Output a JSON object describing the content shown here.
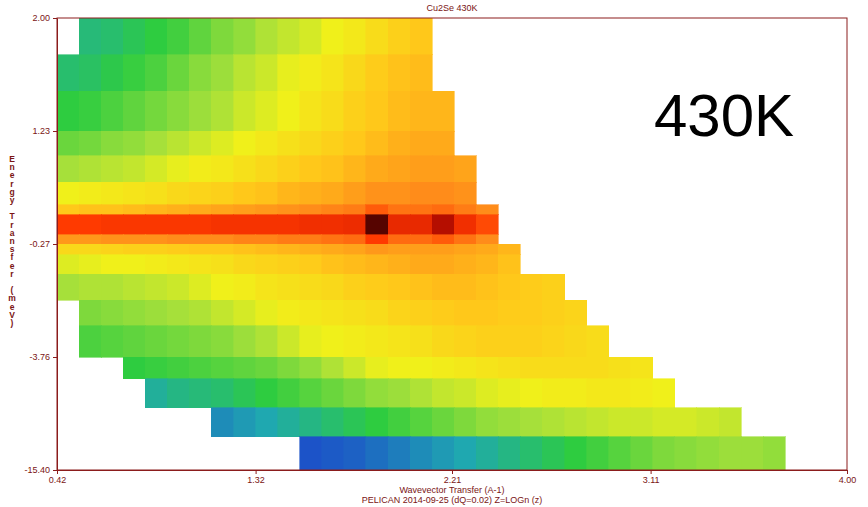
{
  "chart_data": {
    "type": "heatmap",
    "title": "Cu2Se 430K",
    "xlabel": "Wavevector Transfer (A-1)",
    "ylabel": "Energy Transfer (meV)",
    "annotations": [
      "PELICAN 2014-09-25 (dQ=0.02) Z=LOGn (z)",
      "430K"
    ],
    "xlim": [
      0.42,
      4.0
    ],
    "xticks": [
      0.42,
      1.32,
      2.21,
      3.11,
      {
        "value": 4.0,
        "label": "4.00"
      }
    ],
    "ylim": [
      -15.4,
      2.0
    ],
    "yticks": [
      {
        "value": 2.0,
        "label": "2.00"
      },
      1.23,
      -0.27,
      -3.76,
      {
        "value": -15.4,
        "label": "-15.40"
      }
    ],
    "zlim": [
      0,
      10
    ],
    "x_bins": [
      0.42,
      0.52,
      0.62,
      0.72,
      0.82,
      0.92,
      1.02,
      1.12,
      1.22,
      1.32,
      1.42,
      1.52,
      1.62,
      1.72,
      1.82,
      1.92,
      2.02,
      2.12,
      2.22,
      2.32,
      2.42,
      2.52,
      2.62,
      2.72,
      2.82,
      2.92,
      3.02,
      3.12,
      3.22,
      3.32,
      3.42,
      3.52,
      3.62,
      3.72,
      3.82,
      3.92,
      4.0
    ],
    "y_bins": [
      2.0,
      1.75,
      1.5,
      1.23,
      0.9,
      0.55,
      0.25,
      0.12,
      -0.15,
      -0.27,
      -0.6,
      -1.2,
      -2.0,
      -2.8,
      -3.76,
      -6.0,
      -9.0,
      -12.0,
      -15.4
    ],
    "cells": [
      [
        null,
        2.5,
        2.6,
        2.8,
        3.0,
        3.2,
        3.5,
        3.8,
        4.0,
        4.3,
        4.5,
        4.7,
        5.0,
        5.2,
        5.5,
        5.8,
        6.0,
        null,
        null,
        null,
        null,
        null,
        null,
        null,
        null,
        null,
        null,
        null,
        null,
        null,
        null,
        null,
        null,
        null,
        null,
        null
      ],
      [
        2.6,
        2.7,
        2.9,
        3.1,
        3.3,
        3.6,
        3.9,
        4.1,
        4.4,
        4.6,
        4.9,
        5.1,
        5.3,
        5.6,
        5.9,
        6.1,
        6.2,
        null,
        null,
        null,
        null,
        null,
        null,
        null,
        null,
        null,
        null,
        null,
        null,
        null,
        null,
        null,
        null,
        null,
        null,
        null
      ],
      [
        3.0,
        3.1,
        3.3,
        3.5,
        3.7,
        3.9,
        4.1,
        4.3,
        4.6,
        4.8,
        5.0,
        5.3,
        5.5,
        5.8,
        6.0,
        6.2,
        6.3,
        6.3,
        null,
        null,
        null,
        null,
        null,
        null,
        null,
        null,
        null,
        null,
        null,
        null,
        null,
        null,
        null,
        null,
        null,
        null
      ],
      [
        3.6,
        3.7,
        3.9,
        4.0,
        4.2,
        4.4,
        4.6,
        4.8,
        5.0,
        5.2,
        5.4,
        5.6,
        5.8,
        6.0,
        6.2,
        6.4,
        6.5,
        6.5,
        null,
        null,
        null,
        null,
        null,
        null,
        null,
        null,
        null,
        null,
        null,
        null,
        null,
        null,
        null,
        null,
        null,
        null
      ],
      [
        4.2,
        4.3,
        4.4,
        4.5,
        4.7,
        4.9,
        5.1,
        5.2,
        5.4,
        5.6,
        5.8,
        6.0,
        6.1,
        6.3,
        6.5,
        6.6,
        6.7,
        6.7,
        6.6,
        null,
        null,
        null,
        null,
        null,
        null,
        null,
        null,
        null,
        null,
        null,
        null,
        null,
        null,
        null,
        null,
        null
      ],
      [
        5.0,
        5.1,
        5.2,
        5.3,
        5.4,
        5.6,
        5.7,
        5.8,
        6.0,
        6.1,
        6.3,
        6.4,
        6.5,
        6.7,
        6.9,
        6.9,
        7.0,
        7.0,
        6.9,
        null,
        null,
        null,
        null,
        null,
        null,
        null,
        null,
        null,
        null,
        null,
        null,
        null,
        null,
        null,
        null,
        null
      ],
      [
        6.0,
        6.1,
        6.1,
        6.2,
        6.3,
        6.4,
        6.5,
        6.6,
        6.7,
        6.8,
        6.9,
        7.0,
        7.1,
        7.2,
        7.6,
        7.3,
        7.3,
        7.4,
        7.2,
        7.0,
        null,
        null,
        null,
        null,
        null,
        null,
        null,
        null,
        null,
        null,
        null,
        null,
        null,
        null,
        null,
        null
      ],
      [
        8.0,
        8.0,
        8.1,
        8.1,
        8.1,
        8.1,
        8.1,
        8.2,
        8.2,
        8.2,
        8.2,
        8.3,
        8.3,
        8.4,
        9.8,
        8.5,
        8.5,
        9.3,
        8.3,
        7.8,
        null,
        null,
        null,
        null,
        null,
        null,
        null,
        null,
        null,
        null,
        null,
        null,
        null,
        null,
        null,
        null
      ],
      [
        6.8,
        6.8,
        6.9,
        6.9,
        6.9,
        7.0,
        7.0,
        7.0,
        7.1,
        7.1,
        7.2,
        7.2,
        7.3,
        7.4,
        8.0,
        7.4,
        7.4,
        7.6,
        7.3,
        7.0,
        null,
        null,
        null,
        null,
        null,
        null,
        null,
        null,
        null,
        null,
        null,
        null,
        null,
        null,
        null,
        null
      ],
      [
        5.6,
        5.6,
        5.7,
        5.8,
        5.8,
        5.9,
        6.0,
        6.0,
        6.1,
        6.2,
        6.3,
        6.4,
        6.5,
        6.6,
        6.8,
        6.7,
        6.7,
        6.7,
        6.6,
        6.5,
        6.3,
        null,
        null,
        null,
        null,
        null,
        null,
        null,
        null,
        null,
        null,
        null,
        null,
        null,
        null,
        null
      ],
      [
        4.8,
        4.9,
        5.0,
        5.0,
        5.1,
        5.2,
        5.3,
        5.4,
        5.6,
        5.7,
        5.8,
        5.9,
        6.1,
        6.2,
        6.3,
        6.4,
        6.5,
        6.5,
        6.4,
        6.3,
        6.1,
        null,
        null,
        null,
        null,
        null,
        null,
        null,
        null,
        null,
        null,
        null,
        null,
        null,
        null,
        null
      ],
      [
        4.2,
        4.3,
        4.3,
        4.4,
        4.5,
        4.6,
        4.8,
        5.0,
        5.1,
        5.3,
        5.4,
        5.5,
        5.6,
        5.8,
        5.9,
        6.0,
        6.1,
        6.2,
        6.2,
        6.1,
        6.0,
        5.9,
        5.8,
        null,
        null,
        null,
        null,
        null,
        null,
        null,
        null,
        null,
        null,
        null,
        null,
        null
      ],
      [
        null,
        3.8,
        3.9,
        4.0,
        4.1,
        4.2,
        4.3,
        4.5,
        4.7,
        4.9,
        5.1,
        5.2,
        5.3,
        5.4,
        5.5,
        5.7,
        5.8,
        5.9,
        6.0,
        6.0,
        5.9,
        5.9,
        5.8,
        5.7,
        null,
        null,
        null,
        null,
        null,
        null,
        null,
        null,
        null,
        null,
        null,
        null
      ],
      [
        null,
        3.3,
        3.4,
        3.5,
        3.6,
        3.7,
        3.8,
        3.9,
        4.1,
        4.3,
        4.6,
        4.9,
        5.0,
        5.1,
        5.2,
        5.3,
        5.4,
        5.6,
        5.7,
        5.8,
        5.8,
        5.8,
        5.7,
        5.6,
        5.5,
        null,
        null,
        null,
        null,
        null,
        null,
        null,
        null,
        null,
        null,
        null
      ],
      [
        null,
        null,
        null,
        3.0,
        3.1,
        3.2,
        3.3,
        3.4,
        3.5,
        3.6,
        3.8,
        4.0,
        4.3,
        4.6,
        4.9,
        5.0,
        5.0,
        5.1,
        5.2,
        5.3,
        5.4,
        5.5,
        5.5,
        5.5,
        5.5,
        5.4,
        5.3,
        null,
        null,
        null,
        null,
        null,
        null,
        null,
        null,
        null
      ],
      [
        null,
        null,
        null,
        null,
        2.2,
        2.4,
        2.5,
        2.6,
        2.8,
        3.0,
        3.2,
        3.4,
        3.6,
        3.8,
        4.0,
        4.1,
        4.3,
        4.5,
        4.6,
        4.8,
        4.9,
        5.0,
        5.1,
        5.1,
        5.2,
        5.2,
        5.1,
        5.0,
        null,
        null,
        null,
        null,
        null,
        null,
        null,
        null
      ],
      [
        null,
        null,
        null,
        null,
        null,
        null,
        null,
        1.6,
        1.8,
        2.0,
        2.2,
        2.4,
        2.6,
        2.8,
        3.0,
        3.2,
        3.4,
        3.6,
        3.8,
        4.0,
        4.1,
        4.2,
        4.3,
        4.4,
        4.5,
        4.6,
        4.6,
        4.7,
        4.7,
        4.6,
        4.5,
        null,
        null,
        null,
        null,
        null
      ],
      [
        null,
        null,
        null,
        null,
        null,
        null,
        null,
        null,
        null,
        null,
        null,
        0.8,
        0.9,
        1.0,
        1.2,
        1.4,
        1.6,
        1.8,
        2.0,
        2.2,
        2.4,
        2.6,
        2.8,
        3.0,
        3.2,
        3.4,
        3.6,
        3.8,
        3.9,
        4.0,
        4.1,
        4.1,
        4.0,
        null,
        null,
        null
      ]
    ]
  }
}
